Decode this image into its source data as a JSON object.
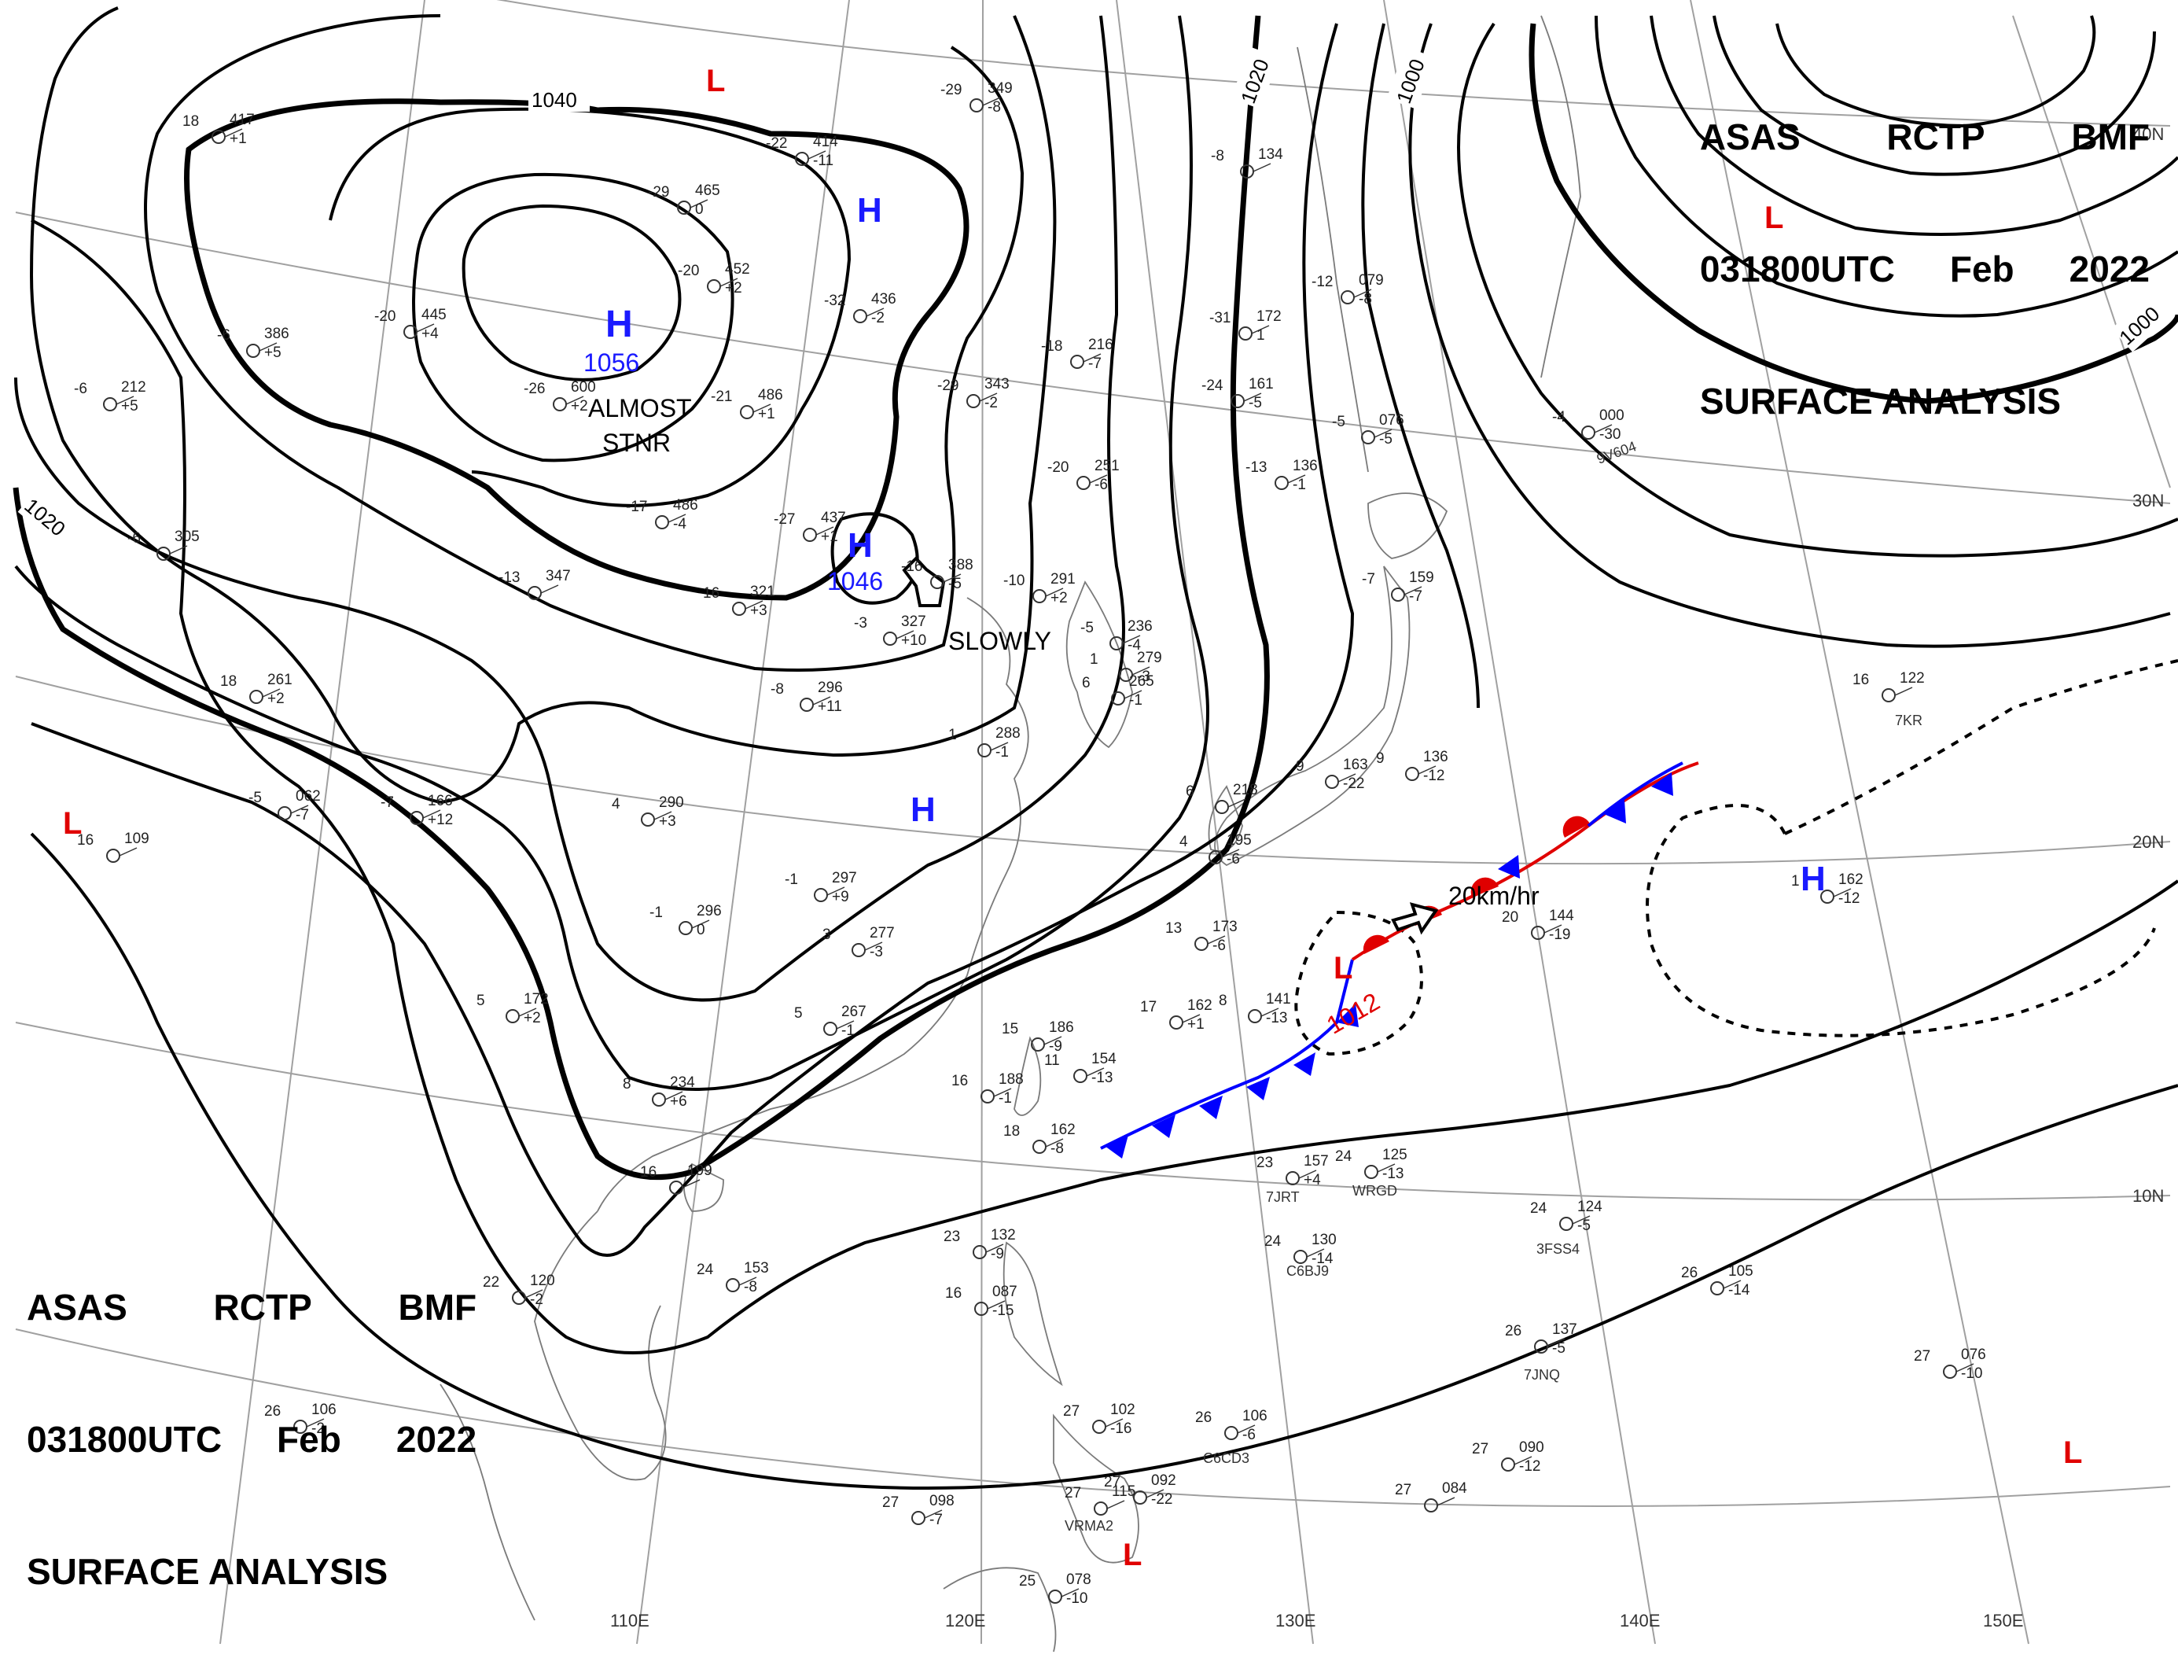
{
  "header": {
    "line1": [
      "ASAS",
      "RCTP",
      "BMF"
    ],
    "line2": [
      "031800UTC",
      "Feb",
      "2022"
    ],
    "line3": "SURFACE ANALYSIS"
  },
  "colors": {
    "isobar": "#000000",
    "high": "#1a1aff",
    "low": "#e00000",
    "cold_front": "#0000ff",
    "warm_front": "#e00000",
    "graticule": "#999999",
    "coast": "#666666"
  },
  "graticule": {
    "lon_labels": [
      "110E",
      "120E",
      "130E",
      "140E",
      "150E"
    ],
    "lat_labels": [
      "40N",
      "30N",
      "20N",
      "10N"
    ]
  },
  "isobar_labels": [
    "1040",
    "1020",
    "1020",
    "1000",
    "1000"
  ],
  "systems": [
    {
      "kind": "H",
      "pressure": "1056"
    },
    {
      "kind": "H",
      "pressure": "1046"
    },
    {
      "kind": "H",
      "pressure": ""
    },
    {
      "kind": "H",
      "pressure": ""
    },
    {
      "kind": "H",
      "pressure": ""
    },
    {
      "kind": "L",
      "pressure": "1012"
    },
    {
      "kind": "L",
      "pressure": ""
    },
    {
      "kind": "L",
      "pressure": ""
    },
    {
      "kind": "L",
      "pressure": ""
    },
    {
      "kind": "L",
      "pressure": ""
    },
    {
      "kind": "L",
      "pressure": ""
    }
  ],
  "annotations": {
    "almost": "ALMOST",
    "stnr": "STNR",
    "slowly": "SLOWLY",
    "speed": "20km/hr"
  },
  "ship_ids": [
    "7JRT",
    "WRGD",
    "C6BJ9",
    "3FSS4",
    "7JNQ",
    "C6CD3",
    "VRMA2",
    "9V604",
    "7KR"
  ],
  "stations": [
    {
      "t": "-29",
      "p": "349",
      "d": "-8"
    },
    {
      "t": "-22",
      "p": "414",
      "d": "-11"
    },
    {
      "t": "18",
      "p": "417",
      "d": "+1"
    },
    {
      "t": "-29",
      "p": "465",
      "d": "0"
    },
    {
      "t": "-20",
      "p": "452",
      "d": "+2"
    },
    {
      "t": "-32",
      "p": "436",
      "d": "-2"
    },
    {
      "t": "-20",
      "p": "445",
      "d": "+4"
    },
    {
      "t": "-6",
      "p": "386",
      "d": "+5"
    },
    {
      "t": "-26",
      "p": "600",
      "d": "+2"
    },
    {
      "t": "-21",
      "p": "486",
      "d": "+1"
    },
    {
      "t": "-29",
      "p": "343",
      "d": "-2"
    },
    {
      "t": "-18",
      "p": "216",
      "d": "-7"
    },
    {
      "t": "-6",
      "p": "212",
      "d": "+5"
    },
    {
      "t": "-17",
      "p": "486",
      "d": "-4"
    },
    {
      "t": "-27",
      "p": "437",
      "d": "+1"
    },
    {
      "t": "-20",
      "p": "251",
      "d": "-6"
    },
    {
      "t": "-6",
      "p": "305",
      "d": ""
    },
    {
      "t": "-13",
      "p": "347",
      "d": ""
    },
    {
      "t": "-16",
      "p": "388",
      "d": "-5"
    },
    {
      "t": "-10",
      "p": "291",
      "d": "+2"
    },
    {
      "t": "16",
      "p": "321",
      "d": "+3"
    },
    {
      "t": "-3",
      "p": "327",
      "d": "+10"
    },
    {
      "t": "-5",
      "p": "236",
      "d": "-4"
    },
    {
      "t": "1",
      "p": "279",
      "d": "-3"
    },
    {
      "t": "6",
      "p": "265",
      "d": "-1"
    },
    {
      "t": "-8",
      "p": "296",
      "d": "+11"
    },
    {
      "t": "18",
      "p": "261",
      "d": "+2"
    },
    {
      "t": "1",
      "p": "288",
      "d": "-1"
    },
    {
      "t": "4",
      "p": "290",
      "d": "+3"
    },
    {
      "t": "-7",
      "p": "166",
      "d": "+12"
    },
    {
      "t": "-5",
      "p": "062",
      "d": "-7"
    },
    {
      "t": "16",
      "p": "109",
      "d": ""
    },
    {
      "t": "-1",
      "p": "297",
      "d": "+9"
    },
    {
      "t": "-1",
      "p": "296",
      "d": "0"
    },
    {
      "t": "3",
      "p": "277",
      "d": "-3"
    },
    {
      "t": "5",
      "p": "172",
      "d": "+2"
    },
    {
      "t": "5",
      "p": "267",
      "d": "-1"
    },
    {
      "t": "8",
      "p": "234",
      "d": "+6"
    },
    {
      "t": "16",
      "p": "199",
      "d": ""
    },
    {
      "t": "24",
      "p": "153",
      "d": "-8"
    },
    {
      "t": "22",
      "p": "120",
      "d": "-2"
    },
    {
      "t": "26",
      "p": "106",
      "d": "-2"
    },
    {
      "t": "15",
      "p": "186",
      "d": "-9"
    },
    {
      "t": "11",
      "p": "154",
      "d": "-13"
    },
    {
      "t": "16",
      "p": "188",
      "d": "-1"
    },
    {
      "t": "18",
      "p": "162",
      "d": "-8"
    },
    {
      "t": "13",
      "p": "173",
      "d": "-6"
    },
    {
      "t": "17",
      "p": "162",
      "d": "+1"
    },
    {
      "t": "8",
      "p": "141",
      "d": "-13"
    },
    {
      "t": "6",
      "p": "218",
      "d": ""
    },
    {
      "t": "4",
      "p": "195",
      "d": "-6"
    },
    {
      "t": "-7",
      "p": "159",
      "d": "-7"
    },
    {
      "t": "-13",
      "p": "136",
      "d": "-1"
    },
    {
      "t": "-24",
      "p": "161",
      "d": "-5"
    },
    {
      "t": "-31",
      "p": "172",
      "d": "1"
    },
    {
      "t": "-12",
      "p": "079",
      "d": "-8"
    },
    {
      "t": "-8",
      "p": "134",
      "d": ""
    },
    {
      "t": "-5",
      "p": "076",
      "d": "-5"
    },
    {
      "t": "9",
      "p": "163",
      "d": "-22"
    },
    {
      "t": "9",
      "p": "136",
      "d": "-12"
    },
    {
      "t": "20",
      "p": "144",
      "d": "-19"
    },
    {
      "t": "-4",
      "p": "000",
      "d": "-30"
    },
    {
      "t": "16",
      "p": "122",
      "d": ""
    },
    {
      "t": "1",
      "p": "162",
      "d": "-12"
    },
    {
      "t": "23",
      "p": "157",
      "d": "+4"
    },
    {
      "t": "24",
      "p": "125",
      "d": "-13"
    },
    {
      "t": "24",
      "p": "130",
      "d": "-14"
    },
    {
      "t": "24",
      "p": "124",
      "d": "-5"
    },
    {
      "t": "26",
      "p": "105",
      "d": "-14"
    },
    {
      "t": "23",
      "p": "132",
      "d": "-9"
    },
    {
      "t": "16",
      "p": "087",
      "d": "-15"
    },
    {
      "t": "26",
      "p": "137",
      "d": "-5"
    },
    {
      "t": "27",
      "p": "076",
      "d": "-10"
    },
    {
      "t": "27",
      "p": "090",
      "d": "-12"
    },
    {
      "t": "26",
      "p": "106",
      "d": "-6"
    },
    {
      "t": "27",
      "p": "102",
      "d": "-16"
    },
    {
      "t": "27",
      "p": "098",
      "d": "-7"
    },
    {
      "t": "27",
      "p": "092",
      "d": "-22"
    },
    {
      "t": "27",
      "p": "084",
      "d": ""
    },
    {
      "t": "25",
      "p": "078",
      "d": "-10"
    },
    {
      "t": "27",
      "p": "115",
      "d": ""
    }
  ]
}
